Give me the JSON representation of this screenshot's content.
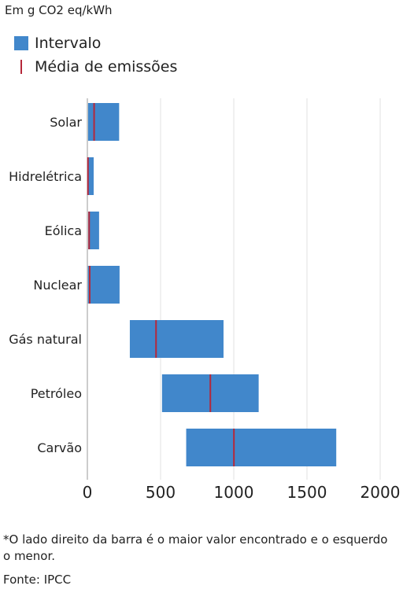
{
  "unit_label": "Em g CO2 eq/kWh",
  "legend": {
    "range_label": "Intervalo",
    "mean_label": "Média de emissões"
  },
  "footnote": "*O lado direito da barra é o maior valor encontrado e o esquerdo o menor.",
  "source": "Fonte: IPCC",
  "colors": {
    "bar": "#4187cb",
    "mean": "#b5283a",
    "grid": "#e2e2e2",
    "axis": "#999999"
  },
  "chart_data": {
    "type": "bar",
    "orientation": "horizontal",
    "style": "floating-range",
    "title": "",
    "xlabel": "",
    "ylabel": "",
    "xlim": [
      0,
      2000
    ],
    "x_ticks": [
      0,
      500,
      1000,
      1500,
      2000
    ],
    "grid": true,
    "legend_position": "top-left",
    "categories": [
      "Solar",
      "Hidrelétrica",
      "Eólica",
      "Nuclear",
      "Gás natural",
      "Petróleo",
      "Carvão"
    ],
    "series": [
      {
        "name": "Intervalo",
        "min": [
          5,
          4,
          6,
          4,
          290,
          510,
          675
        ],
        "max": [
          217,
          43,
          80,
          220,
          930,
          1170,
          1700
        ]
      },
      {
        "name": "Média de emissões",
        "values": [
          46,
          4,
          12,
          16,
          469,
          840,
          1001
        ]
      }
    ]
  }
}
